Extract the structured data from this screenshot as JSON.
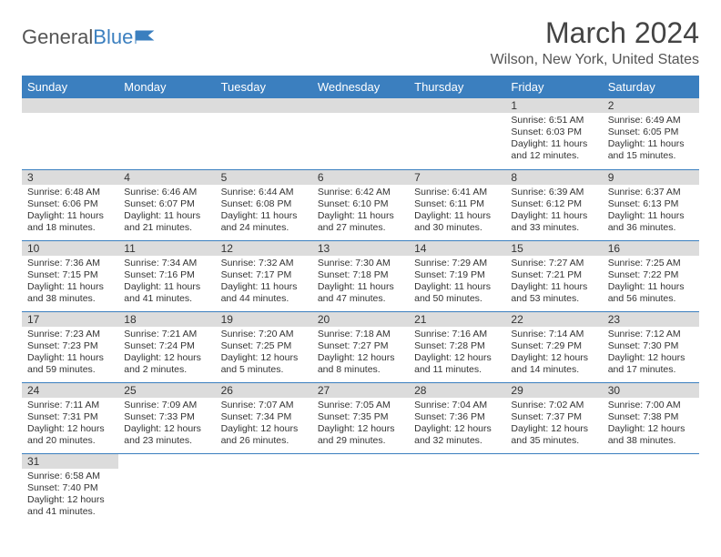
{
  "logo": {
    "text1": "General",
    "text2": "Blue"
  },
  "title": "March 2024",
  "location": "Wilson, New York, United States",
  "colors": {
    "header_bg": "#3b7fbf",
    "header_text": "#ffffff",
    "daynum_bg": "#dcdcdc",
    "row_border": "#3b7fbf",
    "body_text": "#333333",
    "page_bg": "#ffffff"
  },
  "fonts": {
    "title_size": 32,
    "location_size": 16,
    "th_size": 13,
    "cell_size": 10.5
  },
  "day_headers": [
    "Sunday",
    "Monday",
    "Tuesday",
    "Wednesday",
    "Thursday",
    "Friday",
    "Saturday"
  ],
  "weeks": [
    [
      null,
      null,
      null,
      null,
      null,
      {
        "n": "1",
        "sr": "Sunrise: 6:51 AM",
        "ss": "Sunset: 6:03 PM",
        "d1": "Daylight: 11 hours",
        "d2": "and 12 minutes."
      },
      {
        "n": "2",
        "sr": "Sunrise: 6:49 AM",
        "ss": "Sunset: 6:05 PM",
        "d1": "Daylight: 11 hours",
        "d2": "and 15 minutes."
      }
    ],
    [
      {
        "n": "3",
        "sr": "Sunrise: 6:48 AM",
        "ss": "Sunset: 6:06 PM",
        "d1": "Daylight: 11 hours",
        "d2": "and 18 minutes."
      },
      {
        "n": "4",
        "sr": "Sunrise: 6:46 AM",
        "ss": "Sunset: 6:07 PM",
        "d1": "Daylight: 11 hours",
        "d2": "and 21 minutes."
      },
      {
        "n": "5",
        "sr": "Sunrise: 6:44 AM",
        "ss": "Sunset: 6:08 PM",
        "d1": "Daylight: 11 hours",
        "d2": "and 24 minutes."
      },
      {
        "n": "6",
        "sr": "Sunrise: 6:42 AM",
        "ss": "Sunset: 6:10 PM",
        "d1": "Daylight: 11 hours",
        "d2": "and 27 minutes."
      },
      {
        "n": "7",
        "sr": "Sunrise: 6:41 AM",
        "ss": "Sunset: 6:11 PM",
        "d1": "Daylight: 11 hours",
        "d2": "and 30 minutes."
      },
      {
        "n": "8",
        "sr": "Sunrise: 6:39 AM",
        "ss": "Sunset: 6:12 PM",
        "d1": "Daylight: 11 hours",
        "d2": "and 33 minutes."
      },
      {
        "n": "9",
        "sr": "Sunrise: 6:37 AM",
        "ss": "Sunset: 6:13 PM",
        "d1": "Daylight: 11 hours",
        "d2": "and 36 minutes."
      }
    ],
    [
      {
        "n": "10",
        "sr": "Sunrise: 7:36 AM",
        "ss": "Sunset: 7:15 PM",
        "d1": "Daylight: 11 hours",
        "d2": "and 38 minutes."
      },
      {
        "n": "11",
        "sr": "Sunrise: 7:34 AM",
        "ss": "Sunset: 7:16 PM",
        "d1": "Daylight: 11 hours",
        "d2": "and 41 minutes."
      },
      {
        "n": "12",
        "sr": "Sunrise: 7:32 AM",
        "ss": "Sunset: 7:17 PM",
        "d1": "Daylight: 11 hours",
        "d2": "and 44 minutes."
      },
      {
        "n": "13",
        "sr": "Sunrise: 7:30 AM",
        "ss": "Sunset: 7:18 PM",
        "d1": "Daylight: 11 hours",
        "d2": "and 47 minutes."
      },
      {
        "n": "14",
        "sr": "Sunrise: 7:29 AM",
        "ss": "Sunset: 7:19 PM",
        "d1": "Daylight: 11 hours",
        "d2": "and 50 minutes."
      },
      {
        "n": "15",
        "sr": "Sunrise: 7:27 AM",
        "ss": "Sunset: 7:21 PM",
        "d1": "Daylight: 11 hours",
        "d2": "and 53 minutes."
      },
      {
        "n": "16",
        "sr": "Sunrise: 7:25 AM",
        "ss": "Sunset: 7:22 PM",
        "d1": "Daylight: 11 hours",
        "d2": "and 56 minutes."
      }
    ],
    [
      {
        "n": "17",
        "sr": "Sunrise: 7:23 AM",
        "ss": "Sunset: 7:23 PM",
        "d1": "Daylight: 11 hours",
        "d2": "and 59 minutes."
      },
      {
        "n": "18",
        "sr": "Sunrise: 7:21 AM",
        "ss": "Sunset: 7:24 PM",
        "d1": "Daylight: 12 hours",
        "d2": "and 2 minutes."
      },
      {
        "n": "19",
        "sr": "Sunrise: 7:20 AM",
        "ss": "Sunset: 7:25 PM",
        "d1": "Daylight: 12 hours",
        "d2": "and 5 minutes."
      },
      {
        "n": "20",
        "sr": "Sunrise: 7:18 AM",
        "ss": "Sunset: 7:27 PM",
        "d1": "Daylight: 12 hours",
        "d2": "and 8 minutes."
      },
      {
        "n": "21",
        "sr": "Sunrise: 7:16 AM",
        "ss": "Sunset: 7:28 PM",
        "d1": "Daylight: 12 hours",
        "d2": "and 11 minutes."
      },
      {
        "n": "22",
        "sr": "Sunrise: 7:14 AM",
        "ss": "Sunset: 7:29 PM",
        "d1": "Daylight: 12 hours",
        "d2": "and 14 minutes."
      },
      {
        "n": "23",
        "sr": "Sunrise: 7:12 AM",
        "ss": "Sunset: 7:30 PM",
        "d1": "Daylight: 12 hours",
        "d2": "and 17 minutes."
      }
    ],
    [
      {
        "n": "24",
        "sr": "Sunrise: 7:11 AM",
        "ss": "Sunset: 7:31 PM",
        "d1": "Daylight: 12 hours",
        "d2": "and 20 minutes."
      },
      {
        "n": "25",
        "sr": "Sunrise: 7:09 AM",
        "ss": "Sunset: 7:33 PM",
        "d1": "Daylight: 12 hours",
        "d2": "and 23 minutes."
      },
      {
        "n": "26",
        "sr": "Sunrise: 7:07 AM",
        "ss": "Sunset: 7:34 PM",
        "d1": "Daylight: 12 hours",
        "d2": "and 26 minutes."
      },
      {
        "n": "27",
        "sr": "Sunrise: 7:05 AM",
        "ss": "Sunset: 7:35 PM",
        "d1": "Daylight: 12 hours",
        "d2": "and 29 minutes."
      },
      {
        "n": "28",
        "sr": "Sunrise: 7:04 AM",
        "ss": "Sunset: 7:36 PM",
        "d1": "Daylight: 12 hours",
        "d2": "and 32 minutes."
      },
      {
        "n": "29",
        "sr": "Sunrise: 7:02 AM",
        "ss": "Sunset: 7:37 PM",
        "d1": "Daylight: 12 hours",
        "d2": "and 35 minutes."
      },
      {
        "n": "30",
        "sr": "Sunrise: 7:00 AM",
        "ss": "Sunset: 7:38 PM",
        "d1": "Daylight: 12 hours",
        "d2": "and 38 minutes."
      }
    ],
    [
      {
        "n": "31",
        "sr": "Sunrise: 6:58 AM",
        "ss": "Sunset: 7:40 PM",
        "d1": "Daylight: 12 hours",
        "d2": "and 41 minutes."
      },
      null,
      null,
      null,
      null,
      null,
      null
    ]
  ]
}
